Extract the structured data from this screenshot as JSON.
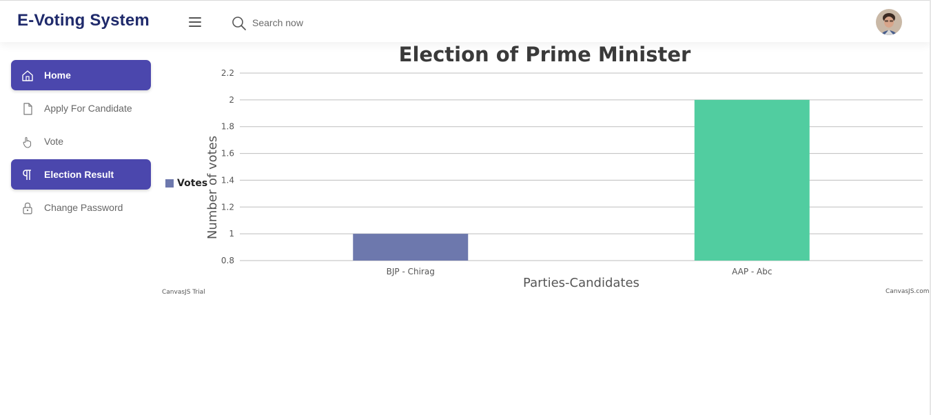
{
  "header": {
    "brand": "E-Voting System",
    "search_placeholder": "Search now"
  },
  "sidebar": {
    "items": [
      {
        "label": "Home",
        "icon": "home-icon",
        "active": true
      },
      {
        "label": "Apply For Candidate",
        "icon": "document-icon",
        "active": false
      },
      {
        "label": "Vote",
        "icon": "hand-pointer-icon",
        "active": false
      },
      {
        "label": "Election Result",
        "icon": "paragraph-icon",
        "active": true
      },
      {
        "label": "Change Password",
        "icon": "lock-icon",
        "active": false
      }
    ]
  },
  "colors": {
    "accent": "#4b47ad",
    "brand_text": "#1f2a6b",
    "bar_bjp": "#6d78ad",
    "bar_aap": "#51cda0"
  },
  "chart_data": {
    "type": "bar",
    "title": "Election of Prime Minister",
    "xlabel": "Parties-Candidates",
    "ylabel": "Number of votes",
    "categories": [
      "BJP - Chirag",
      "AAP - Abc"
    ],
    "series": [
      {
        "name": "Votes",
        "values": [
          1,
          2
        ],
        "colors": [
          "#6d78ad",
          "#51cda0"
        ]
      }
    ],
    "ylim": [
      0.8,
      2.2
    ],
    "yticks": [
      "0.8",
      "1",
      "1.2",
      "1.4",
      "1.6",
      "1.8",
      "2",
      "2.2"
    ],
    "grid": true,
    "legend": "left",
    "watermark_left": "CanvasJS Trial",
    "watermark_right": "CanvasJS.com"
  }
}
